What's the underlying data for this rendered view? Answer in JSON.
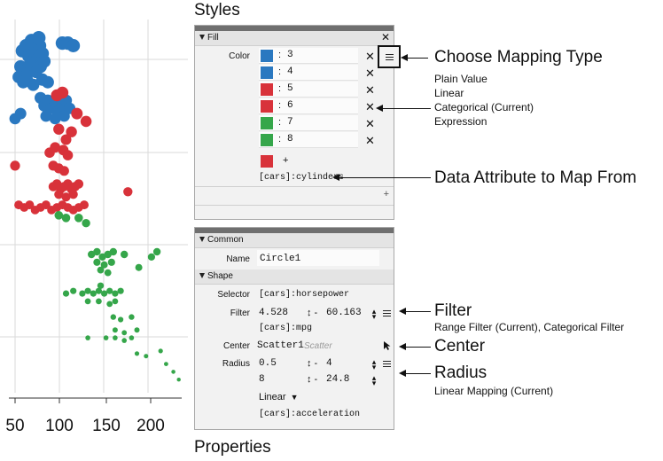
{
  "chart_data": {
    "type": "scatter",
    "x_ticks": [
      "50",
      "100",
      "150",
      "200"
    ],
    "xlim": [
      40,
      230
    ],
    "points": [
      {
        "x": 48,
        "y": 0.1,
        "c": "blue"
      },
      {
        "x": 52,
        "y": 0.08,
        "c": "blue"
      },
      {
        "x": 55,
        "y": 0.12,
        "c": "blue"
      },
      {
        "x": 58,
        "y": 0.09,
        "c": "blue"
      },
      {
        "x": 60,
        "y": 0.14,
        "c": "blue"
      },
      {
        "x": 62,
        "y": 0.1,
        "c": "blue"
      },
      {
        "x": 65,
        "y": 0.13,
        "c": "blue"
      },
      {
        "x": 67,
        "y": 0.08,
        "c": "blue"
      },
      {
        "x": 70,
        "y": 0.11,
        "c": "blue"
      },
      {
        "x": 46,
        "y": 0.16,
        "c": "blue"
      },
      {
        "x": 50,
        "y": 0.18,
        "c": "blue"
      },
      {
        "x": 54,
        "y": 0.17,
        "c": "blue"
      },
      {
        "x": 57,
        "y": 0.15,
        "c": "blue"
      },
      {
        "x": 63,
        "y": 0.18,
        "c": "blue"
      },
      {
        "x": 68,
        "y": 0.16,
        "c": "blue"
      },
      {
        "x": 72,
        "y": 0.14,
        "c": "blue"
      },
      {
        "x": 58,
        "y": 0.06,
        "c": "blue"
      },
      {
        "x": 66,
        "y": 0.05,
        "c": "blue"
      },
      {
        "x": 92,
        "y": 0.07,
        "c": "blue"
      },
      {
        "x": 98,
        "y": 0.07,
        "c": "blue"
      },
      {
        "x": 104,
        "y": 0.08,
        "c": "blue"
      },
      {
        "x": 44,
        "y": 0.2,
        "c": "blue"
      },
      {
        "x": 49,
        "y": 0.22,
        "c": "blue"
      },
      {
        "x": 53,
        "y": 0.21,
        "c": "blue"
      },
      {
        "x": 60,
        "y": 0.23,
        "c": "blue"
      },
      {
        "x": 70,
        "y": 0.21,
        "c": "blue"
      },
      {
        "x": 76,
        "y": 0.22,
        "c": "blue"
      },
      {
        "x": 68,
        "y": 0.28,
        "c": "blue"
      },
      {
        "x": 72,
        "y": 0.31,
        "c": "blue"
      },
      {
        "x": 76,
        "y": 0.29,
        "c": "blue"
      },
      {
        "x": 80,
        "y": 0.32,
        "c": "blue"
      },
      {
        "x": 84,
        "y": 0.3,
        "c": "blue"
      },
      {
        "x": 88,
        "y": 0.33,
        "c": "blue"
      },
      {
        "x": 92,
        "y": 0.31,
        "c": "blue"
      },
      {
        "x": 96,
        "y": 0.29,
        "c": "blue"
      },
      {
        "x": 100,
        "y": 0.32,
        "c": "blue"
      },
      {
        "x": 74,
        "y": 0.35,
        "c": "blue"
      },
      {
        "x": 84,
        "y": 0.36,
        "c": "blue"
      },
      {
        "x": 94,
        "y": 0.35,
        "c": "blue"
      },
      {
        "x": 40,
        "y": 0.36,
        "c": "blue"
      },
      {
        "x": 46,
        "y": 0.34,
        "c": "blue"
      },
      {
        "x": 86,
        "y": 0.27,
        "c": "red"
      },
      {
        "x": 92,
        "y": 0.26,
        "c": "red"
      },
      {
        "x": 108,
        "y": 0.34,
        "c": "red"
      },
      {
        "x": 118,
        "y": 0.37,
        "c": "red"
      },
      {
        "x": 88,
        "y": 0.4,
        "c": "red"
      },
      {
        "x": 102,
        "y": 0.41,
        "c": "red"
      },
      {
        "x": 96,
        "y": 0.44,
        "c": "red"
      },
      {
        "x": 84,
        "y": 0.47,
        "c": "red"
      },
      {
        "x": 78,
        "y": 0.49,
        "c": "red"
      },
      {
        "x": 93,
        "y": 0.48,
        "c": "red"
      },
      {
        "x": 98,
        "y": 0.5,
        "c": "red"
      },
      {
        "x": 40,
        "y": 0.54,
        "c": "red"
      },
      {
        "x": 82,
        "y": 0.54,
        "c": "red"
      },
      {
        "x": 88,
        "y": 0.55,
        "c": "red"
      },
      {
        "x": 94,
        "y": 0.56,
        "c": "red"
      },
      {
        "x": 82,
        "y": 0.62,
        "c": "red"
      },
      {
        "x": 86,
        "y": 0.61,
        "c": "red"
      },
      {
        "x": 90,
        "y": 0.63,
        "c": "red"
      },
      {
        "x": 94,
        "y": 0.62,
        "c": "red"
      },
      {
        "x": 98,
        "y": 0.61,
        "c": "red"
      },
      {
        "x": 102,
        "y": 0.63,
        "c": "red"
      },
      {
        "x": 106,
        "y": 0.62,
        "c": "red"
      },
      {
        "x": 110,
        "y": 0.61,
        "c": "red"
      },
      {
        "x": 88,
        "y": 0.65,
        "c": "red"
      },
      {
        "x": 96,
        "y": 0.66,
        "c": "red"
      },
      {
        "x": 104,
        "y": 0.65,
        "c": "red"
      },
      {
        "x": 164,
        "y": 0.64,
        "c": "red"
      },
      {
        "x": 44,
        "y": 0.69,
        "c": "red"
      },
      {
        "x": 50,
        "y": 0.7,
        "c": "red"
      },
      {
        "x": 56,
        "y": 0.69,
        "c": "red"
      },
      {
        "x": 62,
        "y": 0.71,
        "c": "red"
      },
      {
        "x": 68,
        "y": 0.7,
        "c": "red"
      },
      {
        "x": 74,
        "y": 0.69,
        "c": "red"
      },
      {
        "x": 80,
        "y": 0.71,
        "c": "red"
      },
      {
        "x": 86,
        "y": 0.7,
        "c": "red"
      },
      {
        "x": 92,
        "y": 0.69,
        "c": "red"
      },
      {
        "x": 98,
        "y": 0.7,
        "c": "red"
      },
      {
        "x": 104,
        "y": 0.71,
        "c": "red"
      },
      {
        "x": 110,
        "y": 0.7,
        "c": "red"
      },
      {
        "x": 116,
        "y": 0.69,
        "c": "red"
      },
      {
        "x": 88,
        "y": 0.73,
        "c": "green"
      },
      {
        "x": 96,
        "y": 0.74,
        "c": "green"
      },
      {
        "x": 110,
        "y": 0.74,
        "c": "green"
      },
      {
        "x": 118,
        "y": 0.76,
        "c": "green"
      },
      {
        "x": 124,
        "y": 0.88,
        "c": "green"
      },
      {
        "x": 130,
        "y": 0.87,
        "c": "green"
      },
      {
        "x": 136,
        "y": 0.89,
        "c": "green"
      },
      {
        "x": 142,
        "y": 0.88,
        "c": "green"
      },
      {
        "x": 148,
        "y": 0.87,
        "c": "green"
      },
      {
        "x": 160,
        "y": 0.88,
        "c": "green"
      },
      {
        "x": 190,
        "y": 0.89,
        "c": "green"
      },
      {
        "x": 196,
        "y": 0.87,
        "c": "green"
      },
      {
        "x": 130,
        "y": 0.91,
        "c": "green"
      },
      {
        "x": 138,
        "y": 0.92,
        "c": "green"
      },
      {
        "x": 146,
        "y": 0.91,
        "c": "green"
      },
      {
        "x": 134,
        "y": 0.94,
        "c": "green"
      },
      {
        "x": 142,
        "y": 0.95,
        "c": "green"
      },
      {
        "x": 176,
        "y": 0.93,
        "c": "green"
      }
    ],
    "points2": [
      {
        "x": 96,
        "y": 1.03,
        "c": "green"
      },
      {
        "x": 104,
        "y": 1.02,
        "c": "green"
      },
      {
        "x": 114,
        "y": 1.03,
        "c": "green"
      },
      {
        "x": 120,
        "y": 1.02,
        "c": "green"
      },
      {
        "x": 126,
        "y": 1.03,
        "c": "green"
      },
      {
        "x": 132,
        "y": 1.02,
        "c": "green"
      },
      {
        "x": 138,
        "y": 1.03,
        "c": "green"
      },
      {
        "x": 144,
        "y": 1.02,
        "c": "green"
      },
      {
        "x": 150,
        "y": 1.03,
        "c": "green"
      },
      {
        "x": 156,
        "y": 1.02,
        "c": "green"
      },
      {
        "x": 120,
        "y": 1.06,
        "c": "green"
      },
      {
        "x": 132,
        "y": 1.06,
        "c": "green"
      },
      {
        "x": 144,
        "y": 1.07,
        "c": "green"
      },
      {
        "x": 150,
        "y": 1.06,
        "c": "green"
      },
      {
        "x": 134,
        "y": 1.0,
        "c": "green"
      },
      {
        "x": 148,
        "y": 1.12,
        "c": "green"
      },
      {
        "x": 156,
        "y": 1.13,
        "c": "green"
      },
      {
        "x": 168,
        "y": 1.12,
        "c": "green"
      },
      {
        "x": 150,
        "y": 1.17,
        "c": "green"
      },
      {
        "x": 160,
        "y": 1.18,
        "c": "green"
      },
      {
        "x": 174,
        "y": 1.17,
        "c": "green"
      },
      {
        "x": 120,
        "y": 1.2,
        "c": "green"
      },
      {
        "x": 140,
        "y": 1.2,
        "c": "green"
      },
      {
        "x": 150,
        "y": 1.2,
        "c": "green"
      },
      {
        "x": 160,
        "y": 1.21,
        "c": "green"
      },
      {
        "x": 168,
        "y": 1.2,
        "c": "green"
      },
      {
        "x": 174,
        "y": 1.26,
        "c": "green"
      },
      {
        "x": 184,
        "y": 1.27,
        "c": "green"
      },
      {
        "x": 200,
        "y": 1.25,
        "c": "green"
      },
      {
        "x": 206,
        "y": 1.3,
        "c": "green"
      },
      {
        "x": 214,
        "y": 1.33,
        "c": "green"
      },
      {
        "x": 220,
        "y": 1.36,
        "c": "green"
      }
    ]
  },
  "colors": {
    "blue": "#2a78c0",
    "red": "#d8323a",
    "green": "#35a64a",
    "panel_bg": "#f2f2f2",
    "panel_header": "#6f6f6f"
  },
  "headings": {
    "styles": "Styles",
    "properties": "Properties"
  },
  "styles_panel": {
    "fill_section": "Fill",
    "color_label": "Color",
    "color_rows": [
      {
        "value": "3",
        "color": "#2a78c0"
      },
      {
        "value": "4",
        "color": "#2a78c0"
      },
      {
        "value": "5",
        "color": "#d8323a"
      },
      {
        "value": "6",
        "color": "#d8323a"
      },
      {
        "value": "7",
        "color": "#35a64a"
      },
      {
        "value": "8",
        "color": "#35a64a"
      }
    ],
    "separator": ":",
    "add_label": "+",
    "attribute": "[cars]:cylinders",
    "bottom_add": "+"
  },
  "properties_panel": {
    "common_section": "Common",
    "name_label": "Name",
    "name_value": "Circle1",
    "shape_section": "Shape",
    "selector_label": "Selector",
    "selector_value": "[cars]:horsepower",
    "filter_label": "Filter",
    "filter_min": "4.528",
    "filter_max": "60.163",
    "filter_attr": "[cars]:mpg",
    "center_label": "Center",
    "center_value": "Scatter1",
    "center_hint": "Scatter",
    "radius_label": "Radius",
    "radius_min": "0.5",
    "radius_max": "4",
    "radius_min2": "8",
    "radius_max2": "24.8",
    "radius_mode": "Linear",
    "radius_attr": "[cars]:acceleration",
    "range_sep": "↕ -"
  },
  "annotations": {
    "mapping_title": "Choose Mapping Type",
    "mapping_options": [
      "Plain Value",
      "Linear",
      "Categorical (Current)",
      "Expression"
    ],
    "data_attr_title": "Data Attribute to Map From",
    "filter_title": "Filter",
    "filter_sub": "Range Filter (Current), Categorical Filter",
    "center_title": "Center",
    "radius_title": "Radius",
    "radius_sub": "Linear Mapping (Current)"
  }
}
